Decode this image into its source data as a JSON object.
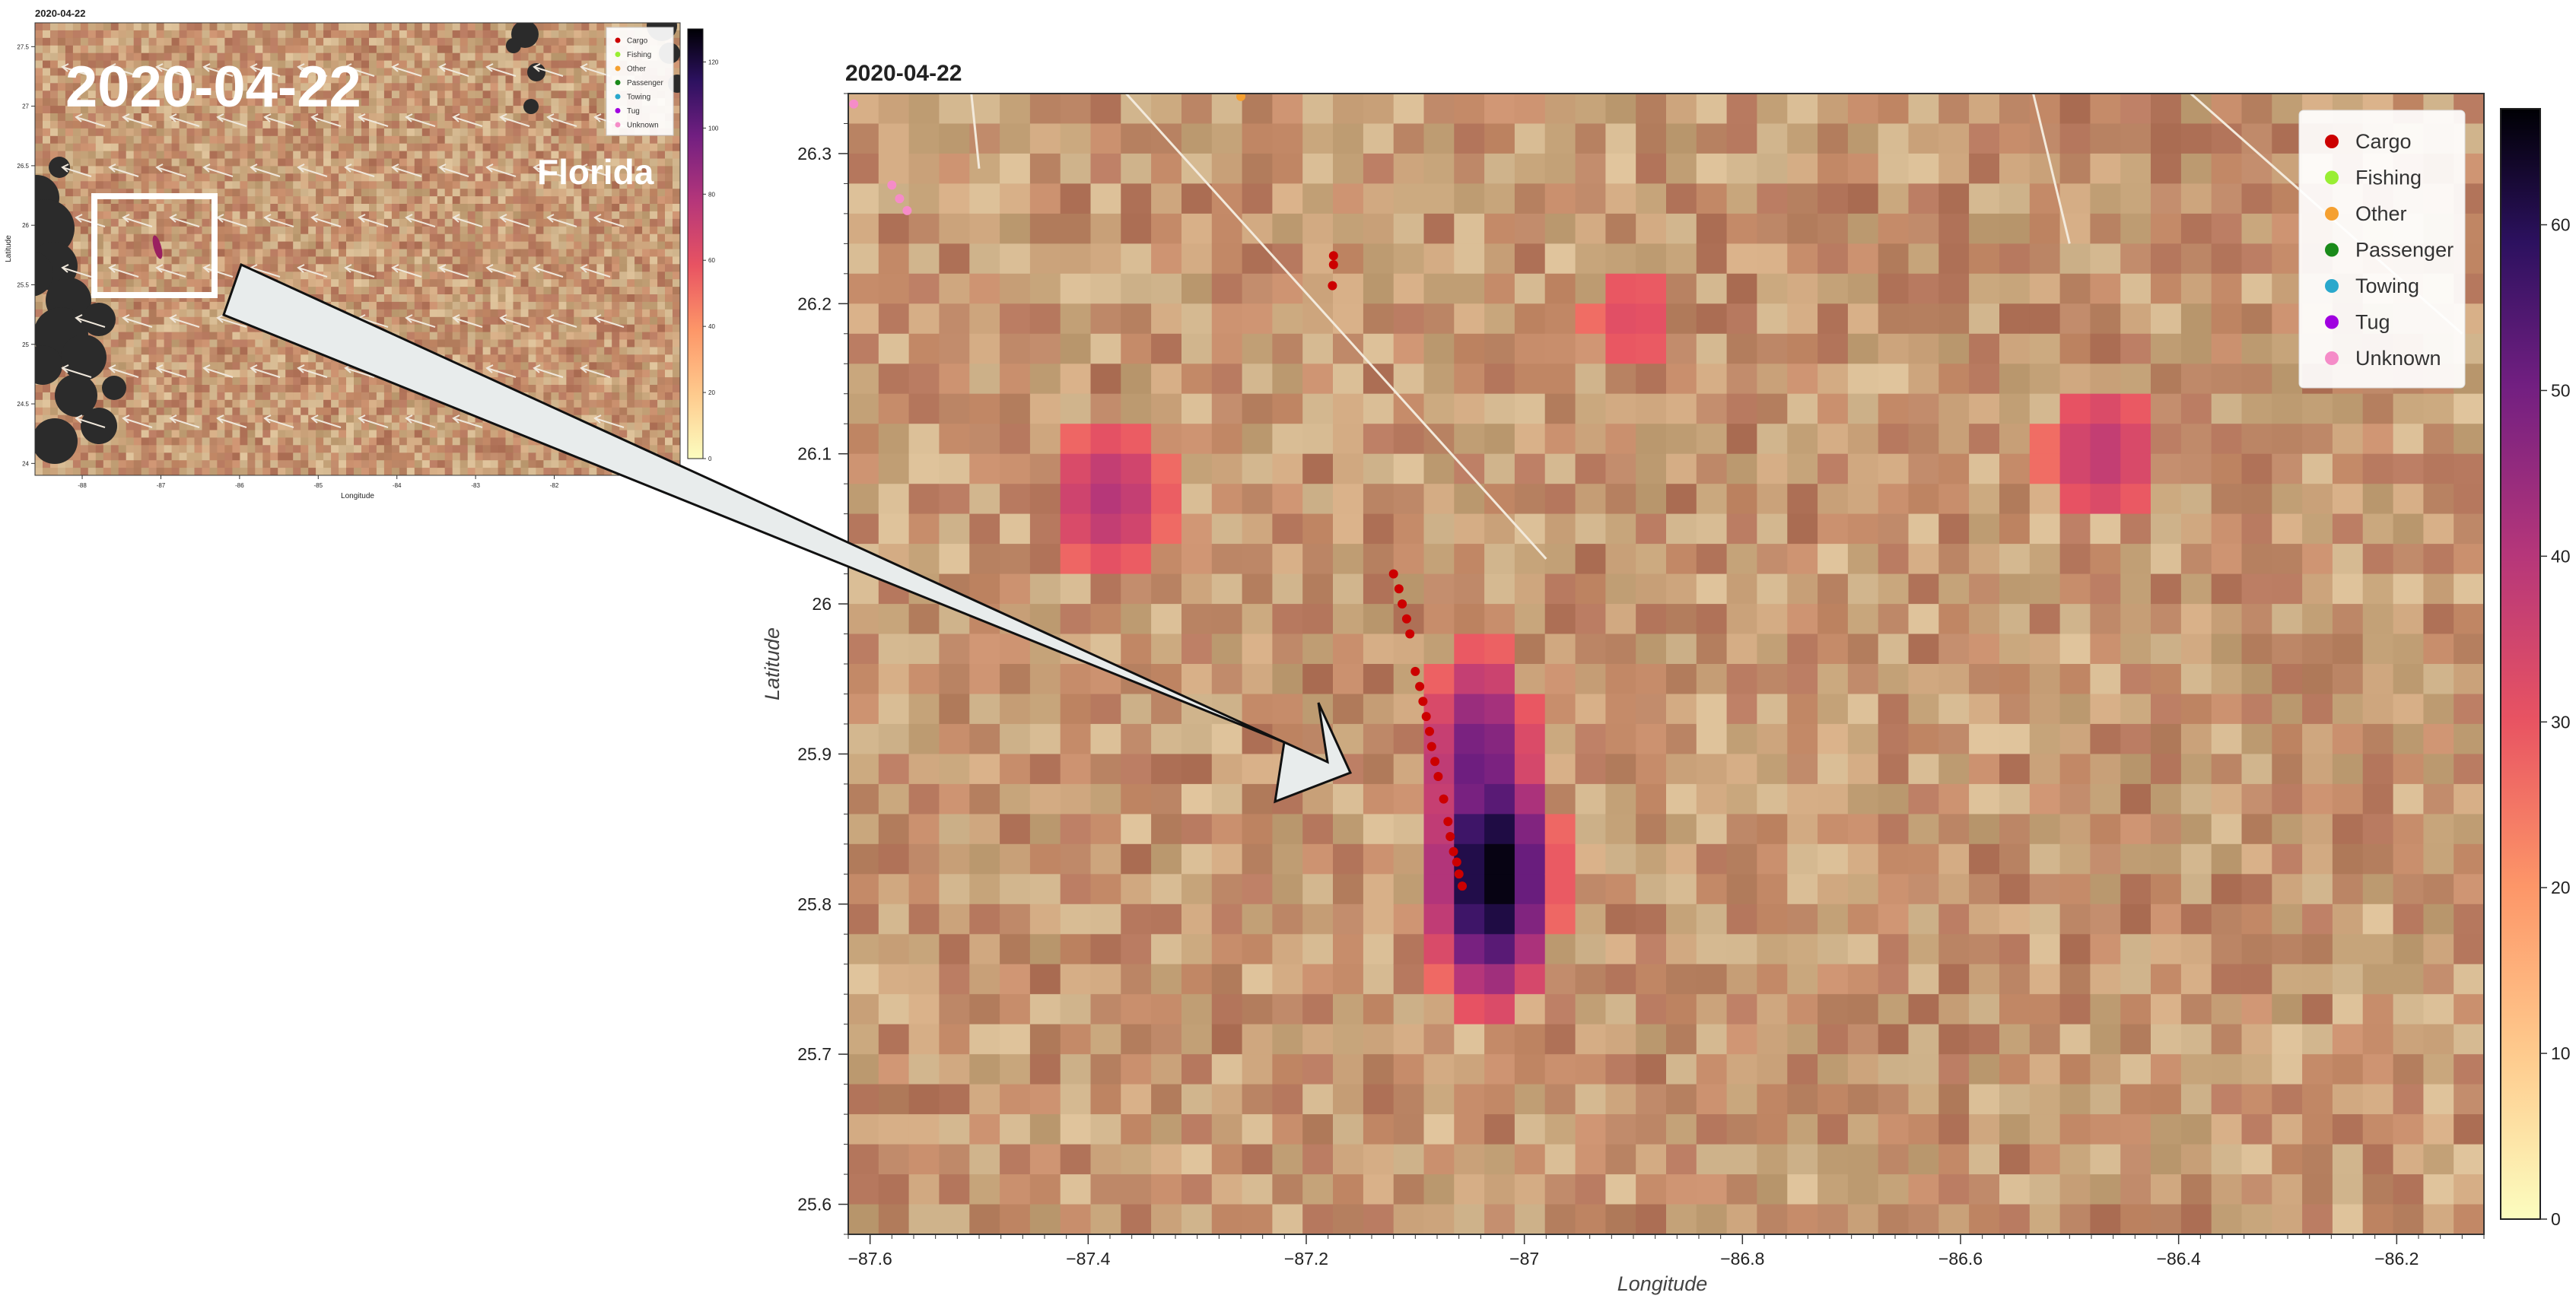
{
  "chart_data": [
    {
      "type": "heatmap",
      "panel": "overview",
      "title": "2020-04-22",
      "overlay_date": "2020-04-22",
      "region_label": "Florida",
      "xlabel": "Longitude",
      "ylabel": "Latitude",
      "xlim": [
        -88.6,
        -80.4
      ],
      "ylim": [
        23.9,
        27.7
      ],
      "x_ticks": [
        "-88",
        "-87",
        "-86",
        "-85",
        "-84",
        "-83",
        "-82"
      ],
      "y_ticks": [
        "24",
        "24.5",
        "25",
        "25.5",
        "26",
        "26.5",
        "27",
        "27.5"
      ],
      "colorbar": {
        "min": 0,
        "max": 130,
        "ticks": [
          "0",
          "20",
          "40",
          "60",
          "80",
          "100",
          "120"
        ]
      },
      "highlight_box": {
        "lon": [
          -87.9,
          -86.4
        ],
        "lat": [
          25.2,
          26.4
        ]
      },
      "legend": [
        "Cargo",
        "Fishing",
        "Other",
        "Passenger",
        "Towing",
        "Tug",
        "Unknown"
      ]
    },
    {
      "type": "heatmap",
      "panel": "zoom",
      "title": "2020-04-22",
      "xlabel": "Longitude",
      "ylabel": "Latitude",
      "xlim": [
        -87.62,
        -86.12
      ],
      "ylim": [
        25.58,
        26.34
      ],
      "x_ticks": [
        {
          "value": -87.6,
          "label": "−87.6"
        },
        {
          "value": -87.4,
          "label": "−87.4"
        },
        {
          "value": -87.2,
          "label": "−87.2"
        },
        {
          "value": -87.0,
          "label": "−87"
        },
        {
          "value": -86.8,
          "label": "−86.8"
        },
        {
          "value": -86.6,
          "label": "−86.6"
        },
        {
          "value": -86.4,
          "label": "−86.4"
        },
        {
          "value": -86.2,
          "label": "−86.2"
        }
      ],
      "y_ticks": [
        {
          "value": 25.6,
          "label": "25.6"
        },
        {
          "value": 25.7,
          "label": "25.7"
        },
        {
          "value": 25.8,
          "label": "25.8"
        },
        {
          "value": 25.9,
          "label": "25.9"
        },
        {
          "value": 26.0,
          "label": "26"
        },
        {
          "value": 26.1,
          "label": "26.1"
        },
        {
          "value": 26.2,
          "label": "26.2"
        },
        {
          "value": 26.3,
          "label": "26.3"
        }
      ],
      "colorbar": {
        "min": 0,
        "max": 67,
        "ticks": [
          {
            "value": 0,
            "label": "0"
          },
          {
            "value": 10,
            "label": "10"
          },
          {
            "value": 20,
            "label": "20"
          },
          {
            "value": 30,
            "label": "30"
          },
          {
            "value": 40,
            "label": "40"
          },
          {
            "value": 50,
            "label": "50"
          },
          {
            "value": 60,
            "label": "60"
          }
        ]
      },
      "legend": [
        {
          "label": "Cargo",
          "color": "#cc0000"
        },
        {
          "label": "Fishing",
          "color": "#99ee33"
        },
        {
          "label": "Other",
          "color": "#f5a030"
        },
        {
          "label": "Passenger",
          "color": "#1a8a1a"
        },
        {
          "label": "Towing",
          "color": "#2aa8cc"
        },
        {
          "label": "Tug",
          "color": "#a000e0"
        },
        {
          "label": "Unknown",
          "color": "#f58cc8"
        }
      ],
      "hotspots": [
        {
          "lon": -87.03,
          "lat": 25.82,
          "value": 67
        },
        {
          "lon": -87.04,
          "lat": 25.89,
          "value": 52
        },
        {
          "lon": -87.38,
          "lat": 26.07,
          "value": 40
        },
        {
          "lon": -86.47,
          "lat": 26.1,
          "value": 38
        },
        {
          "lon": -86.9,
          "lat": 26.19,
          "value": 32
        }
      ],
      "vessels": [
        {
          "type": "Cargo",
          "points": [
            [
              -87.12,
              26.02
            ],
            [
              -87.115,
              26.01
            ],
            [
              -87.112,
              26.0
            ],
            [
              -87.108,
              25.99
            ],
            [
              -87.105,
              25.98
            ],
            [
              -87.1,
              25.955
            ],
            [
              -87.096,
              25.945
            ],
            [
              -87.093,
              25.935
            ],
            [
              -87.09,
              25.925
            ],
            [
              -87.087,
              25.915
            ],
            [
              -87.085,
              25.905
            ],
            [
              -87.082,
              25.895
            ],
            [
              -87.079,
              25.885
            ],
            [
              -87.074,
              25.87
            ],
            [
              -87.07,
              25.855
            ],
            [
              -87.068,
              25.845
            ],
            [
              -87.065,
              25.835
            ],
            [
              -87.062,
              25.828
            ],
            [
              -87.06,
              25.82
            ],
            [
              -87.057,
              25.812
            ],
            [
              -87.175,
              26.232
            ],
            [
              -87.175,
              26.226
            ],
            [
              -87.176,
              26.212
            ]
          ]
        },
        {
          "type": "Other",
          "points": [
            [
              -87.26,
              26.338
            ]
          ]
        },
        {
          "type": "Unknown",
          "points": [
            [
              -87.615,
              26.333
            ],
            [
              -87.58,
              26.279
            ],
            [
              -87.573,
              26.27
            ],
            [
              -87.566,
              26.262
            ]
          ]
        }
      ],
      "wind_lines": [
        [
          [
            -87.51,
            26.36
          ],
          [
            -87.5,
            26.29
          ]
        ],
        [
          [
            -87.39,
            26.36
          ],
          [
            -86.98,
            26.03
          ]
        ],
        [
          [
            -86.54,
            26.36
          ],
          [
            -86.5,
            26.24
          ]
        ],
        [
          [
            -86.42,
            26.36
          ],
          [
            -86.14,
            26.18
          ]
        ]
      ]
    }
  ]
}
